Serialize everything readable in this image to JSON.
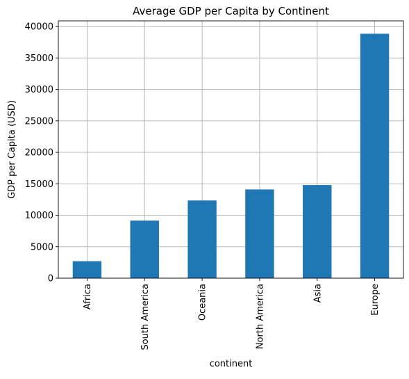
{
  "chart_data": {
    "type": "bar",
    "title": "Average GDP per Capita by Continent",
    "xlabel": "continent",
    "ylabel": "GDP per Capita (USD)",
    "categories": [
      "Africa",
      "South America",
      "Oceania",
      "North America",
      "Asia",
      "Europe"
    ],
    "values": [
      2700,
      9150,
      12350,
      14100,
      14800,
      38850
    ],
    "ylim": [
      0,
      40900
    ],
    "yticks": [
      0,
      5000,
      10000,
      15000,
      20000,
      25000,
      30000,
      35000,
      40000
    ],
    "grid": true,
    "bar_color": "#1f77b4",
    "grid_color": "#b0b0b0",
    "x_tick_rotation": "vertical"
  }
}
